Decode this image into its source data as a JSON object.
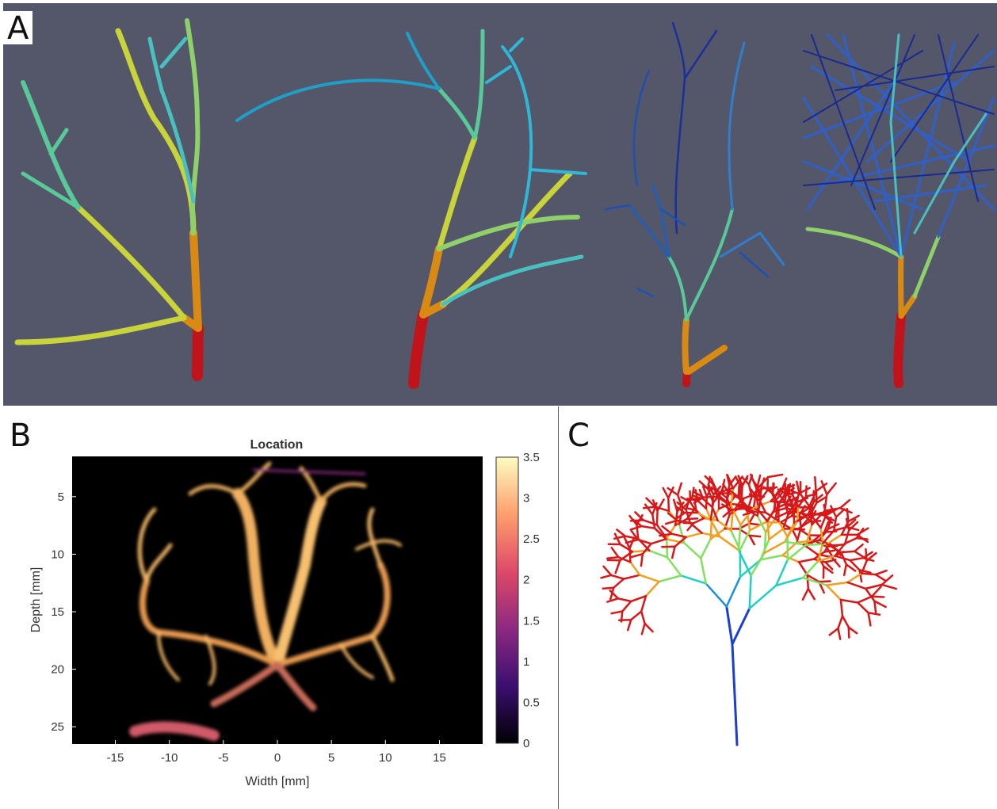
{
  "panels": {
    "a": {
      "label": "A"
    },
    "b": {
      "label": "B"
    },
    "c": {
      "label": "C"
    }
  },
  "chart_data": {
    "type": "heatmap",
    "title": "Location",
    "xlabel": "Width [mm]",
    "ylabel": "Depth [mm]",
    "xlim": [
      -19,
      19
    ],
    "ylim": [
      26.5,
      1.5
    ],
    "x_ticks": [
      -15,
      -10,
      -5,
      0,
      5,
      10,
      15
    ],
    "y_ticks": [
      5,
      10,
      15,
      20,
      25
    ],
    "colorbar": {
      "ticks": [
        0,
        0.5,
        1,
        1.5,
        2,
        2.5,
        3,
        3.5
      ],
      "range": [
        0,
        3.5
      ]
    },
    "colormap": [
      "#000004",
      "#3b0f70",
      "#8c2981",
      "#de4968",
      "#fe9f6d",
      "#fcfdbf"
    ]
  },
  "colors": {
    "panel_a_bg": "#545769",
    "trunk": "#c0141a",
    "level1": "#d98a12",
    "level2": "#c8d43a",
    "level3": "#59c99a",
    "level4": "#2fb7d8",
    "level5": "#1f5fb8",
    "level6": "#141c7a"
  }
}
